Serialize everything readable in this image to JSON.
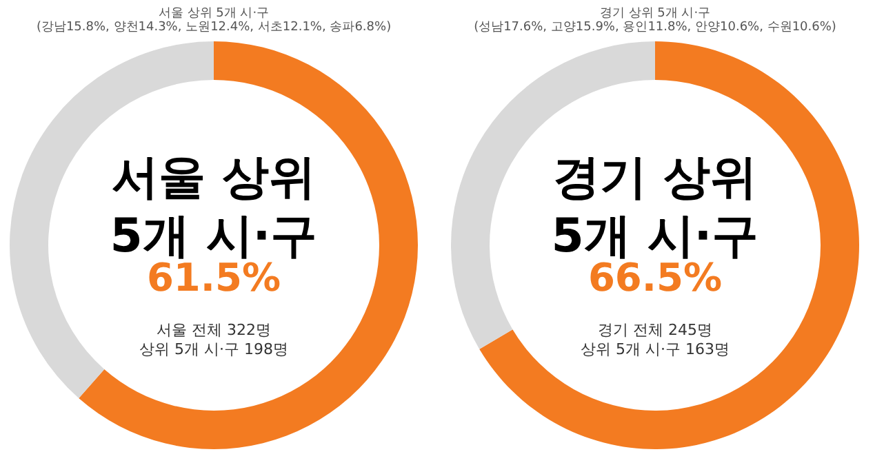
{
  "chart_data": [
    {
      "type": "donut",
      "title": "서울 상위 5개 시·구",
      "subtitle": "(강남15.8%, 양천14.3%, 노원12.4%, 서초12.1%, 송파6.8%)",
      "categories": [
        null,
        null
      ],
      "values": [
        61.5,
        38.5
      ],
      "colors": [
        "#f37b21",
        "#d9d9d9"
      ],
      "value_labels": [
        "61.5%",
        null
      ],
      "annotations": [
        "서울 상위\n5개 시·구",
        "서울 전체 322명\n상위 5개 시·구 198명"
      ]
    },
    {
      "type": "donut",
      "title": "경기 상위 5개 시·구",
      "subtitle": "(성남17.6%, 고양15.9%, 용인11.8%, 안양10.6%, 수원10.6%)",
      "categories": [
        null,
        null
      ],
      "values": [
        66.5,
        33.5
      ],
      "colors": [
        "#f37b21",
        "#d9d9d9"
      ],
      "value_labels": [
        "66.5%",
        null
      ],
      "annotations": [
        "경기 상위\n5개 시·구",
        "경기 전체 245명\n상위 5개 시·구 163명"
      ]
    }
  ]
}
